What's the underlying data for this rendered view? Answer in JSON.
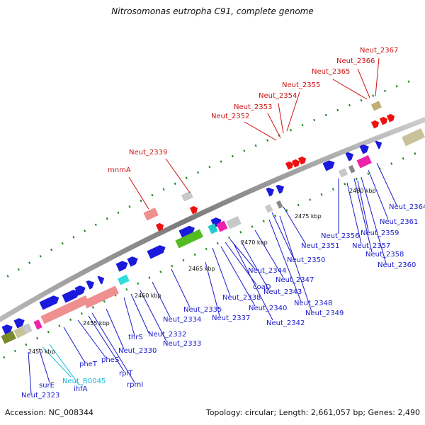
{
  "title": "Nitrosomonas eutropha C91, complete genome",
  "footer": {
    "accession": "Accession: NC_008344",
    "topology": "Topology: circular; Length: 2,661,057 bp; Genes: 2,490"
  },
  "colors": {
    "backbone": "#8c8c8c",
    "forward_gene": "#1a1adc",
    "reverse_gene": "#ee1111",
    "label_blue": "#1a1acd",
    "label_red": "#cc1111",
    "label_cyan": "#11bbdd",
    "tick": "#228822"
  },
  "kbp_marks": [
    "2450 kbp",
    "2455 kbp",
    "2460 kbp",
    "2465 kbp",
    "2470 kbp",
    "2475 kbp",
    "2480 kbp"
  ],
  "labels_blue": [
    "Neut_2323",
    "surE",
    "ihfA",
    "pheT",
    "pheS",
    "rplT",
    "rpmI",
    "Neut_2330",
    "thrS",
    "Neut_2332",
    "Neut_2333",
    "Neut_2334",
    "Neut_2335",
    "Neut_2337",
    "Neut_2338",
    "coaD",
    "Neut_2340",
    "Neut_2342",
    "Neut_2343",
    "Neut_2344",
    "Neut_2347",
    "Neut_2348",
    "Neut_2349",
    "Neut_2350",
    "Neut_2351",
    "Neut_2356",
    "Neut_2357",
    "Neut_2358",
    "Neut_2359",
    "Neut_2360",
    "Neut_2361",
    "Neut_2364"
  ],
  "labels_cyan": [
    "Neut_R0045"
  ],
  "labels_red": [
    "mnmA",
    "Neut_2339",
    "Neut_2352",
    "Neut_2353",
    "Neut_2354",
    "Neut_2355",
    "Neut_2365",
    "Neut_2366",
    "Neut_2367"
  ]
}
